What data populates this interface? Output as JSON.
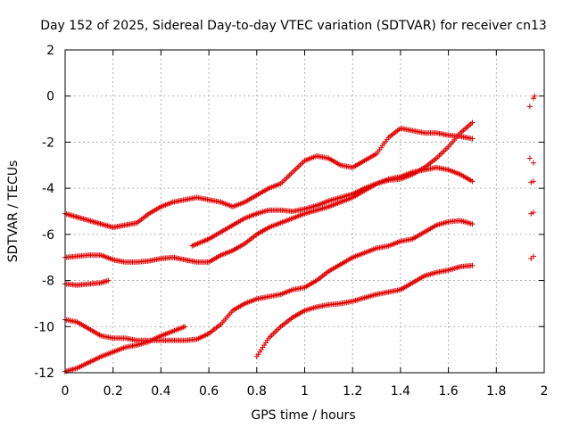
{
  "chart_data": {
    "type": "scatter",
    "title": "Day 152 of 2025, Sidereal Day-to-day VTEC variation (SDTVAR) for receiver cn13",
    "xlabel": "GPS time / hours",
    "ylabel": "SDTVAR / TECUs",
    "xlim": [
      0,
      2
    ],
    "ylim": [
      -12,
      2
    ],
    "xticks": [
      "0",
      "0.2",
      "0.4",
      "0.6",
      "0.8",
      "1",
      "1.2",
      "1.4",
      "1.6",
      "1.8",
      "2"
    ],
    "yticks": [
      "2",
      "0",
      "-2",
      "-4",
      "-6",
      "-8",
      "-10",
      "-12"
    ],
    "grid": true,
    "marker": "plus",
    "color": "#e00000",
    "series": [
      {
        "name": "s1",
        "x": [
          0,
          0.1,
          0.2,
          0.3,
          0.35,
          0.4,
          0.45,
          0.5,
          0.55,
          0.6,
          0.65,
          0.7,
          0.75,
          0.8,
          0.85,
          0.9,
          0.95,
          1.0,
          1.05,
          1.1,
          1.15,
          1.2,
          1.25,
          1.3,
          1.35,
          1.4,
          1.45,
          1.5,
          1.55,
          1.6,
          1.65,
          1.7
        ],
        "y": [
          -5.1,
          -5.4,
          -5.7,
          -5.5,
          -5.1,
          -4.8,
          -4.6,
          -4.5,
          -4.4,
          -4.5,
          -4.6,
          -4.8,
          -4.6,
          -4.3,
          -4.0,
          -3.8,
          -3.3,
          -2.8,
          -2.6,
          -2.7,
          -3.0,
          -3.1,
          -2.8,
          -2.5,
          -1.8,
          -1.4,
          -1.5,
          -1.6,
          -1.6,
          -1.7,
          -1.75,
          -1.85
        ]
      },
      {
        "name": "s2",
        "x": [
          0,
          0.05,
          0.1,
          0.15,
          0.2,
          0.25,
          0.3,
          0.35,
          0.4,
          0.45,
          0.5,
          0.55,
          0.6,
          0.65,
          0.7,
          0.75,
          0.8,
          0.85,
          0.9,
          0.95,
          1.0,
          1.05,
          1.1,
          1.15,
          1.2,
          1.25,
          1.3,
          1.35,
          1.4,
          1.45,
          1.5,
          1.55,
          1.6,
          1.65,
          1.7
        ],
        "y": [
          -7.0,
          -6.95,
          -6.9,
          -6.9,
          -7.1,
          -7.2,
          -7.2,
          -7.15,
          -7.05,
          -7.0,
          -7.1,
          -7.2,
          -7.2,
          -6.9,
          -6.7,
          -6.4,
          -6.0,
          -5.7,
          -5.5,
          -5.3,
          -5.1,
          -4.95,
          -4.8,
          -4.6,
          -4.4,
          -4.1,
          -3.8,
          -3.6,
          -3.5,
          -3.3,
          -3.2,
          -3.1,
          -3.2,
          -3.4,
          -3.7
        ]
      },
      {
        "name": "s3",
        "x": [
          0,
          0.05,
          0.1,
          0.15,
          0.18
        ],
        "y": [
          -8.15,
          -8.2,
          -8.15,
          -8.1,
          -8.0
        ]
      },
      {
        "name": "s4",
        "x": [
          0,
          0.05,
          0.1,
          0.15,
          0.2,
          0.25,
          0.3,
          0.35,
          0.4,
          0.45,
          0.5,
          0.55,
          0.6,
          0.65,
          0.7,
          0.75,
          0.8,
          0.85,
          0.9,
          0.95,
          1.0,
          1.05,
          1.1,
          1.15,
          1.2,
          1.25,
          1.3,
          1.35,
          1.4,
          1.45,
          1.5,
          1.55,
          1.6,
          1.65,
          1.7
        ],
        "y": [
          -9.7,
          -9.8,
          -10.1,
          -10.4,
          -10.5,
          -10.5,
          -10.6,
          -10.6,
          -10.6,
          -10.6,
          -10.6,
          -10.55,
          -10.3,
          -9.9,
          -9.3,
          -9.0,
          -8.8,
          -8.7,
          -8.6,
          -8.4,
          -8.3,
          -8.0,
          -7.6,
          -7.3,
          -7.0,
          -6.8,
          -6.6,
          -6.5,
          -6.3,
          -6.2,
          -5.9,
          -5.6,
          -5.45,
          -5.4,
          -5.55
        ]
      },
      {
        "name": "s5",
        "x": [
          0,
          0.05,
          0.1,
          0.15,
          0.2,
          0.25,
          0.3,
          0.35,
          0.4,
          0.45,
          0.5
        ],
        "y": [
          -11.95,
          -11.8,
          -11.55,
          -11.3,
          -11.1,
          -10.9,
          -10.8,
          -10.65,
          -10.4,
          -10.2,
          -10.0
        ]
      },
      {
        "name": "s6",
        "x": [
          0.53,
          0.6,
          0.65,
          0.7,
          0.75,
          0.8,
          0.85,
          0.9,
          0.95,
          1.0,
          1.05,
          1.1,
          1.15,
          1.2,
          1.25,
          1.3,
          1.35,
          1.4,
          1.45,
          1.5,
          1.55,
          1.6,
          1.65,
          1.7
        ],
        "y": [
          -6.5,
          -6.2,
          -5.9,
          -5.6,
          -5.3,
          -5.1,
          -4.95,
          -4.95,
          -5.0,
          -4.9,
          -4.75,
          -4.55,
          -4.4,
          -4.25,
          -4.0,
          -3.8,
          -3.65,
          -3.6,
          -3.4,
          -3.1,
          -2.7,
          -2.2,
          -1.6,
          -1.15
        ]
      },
      {
        "name": "s7",
        "x": [
          0.8,
          0.85,
          0.9,
          0.95,
          1.0,
          1.05,
          1.1,
          1.15,
          1.2,
          1.25,
          1.3,
          1.35,
          1.4,
          1.45,
          1.5,
          1.55,
          1.6,
          1.65,
          1.7
        ],
        "y": [
          -11.3,
          -10.5,
          -10.0,
          -9.6,
          -9.3,
          -9.15,
          -9.05,
          -9.0,
          -8.9,
          -8.75,
          -8.6,
          -8.5,
          -8.4,
          -8.1,
          -7.8,
          -7.65,
          -7.55,
          -7.4,
          -7.35
        ]
      },
      {
        "name": "s8",
        "x": [
          1.94,
          1.955,
          1.96
        ],
        "y": [
          -0.45,
          -0.1,
          0
        ]
      },
      {
        "name": "s9",
        "x": [
          1.94,
          1.955
        ],
        "y": [
          -2.7,
          -2.9
        ]
      },
      {
        "name": "s10",
        "x": [
          1.945,
          1.955
        ],
        "y": [
          -3.75,
          -3.7
        ]
      },
      {
        "name": "s11",
        "x": [
          1.945,
          1.955
        ],
        "y": [
          -5.1,
          -5.05
        ]
      },
      {
        "name": "s12",
        "x": [
          1.945,
          1.955
        ],
        "y": [
          -7.05,
          -6.95
        ]
      }
    ]
  }
}
